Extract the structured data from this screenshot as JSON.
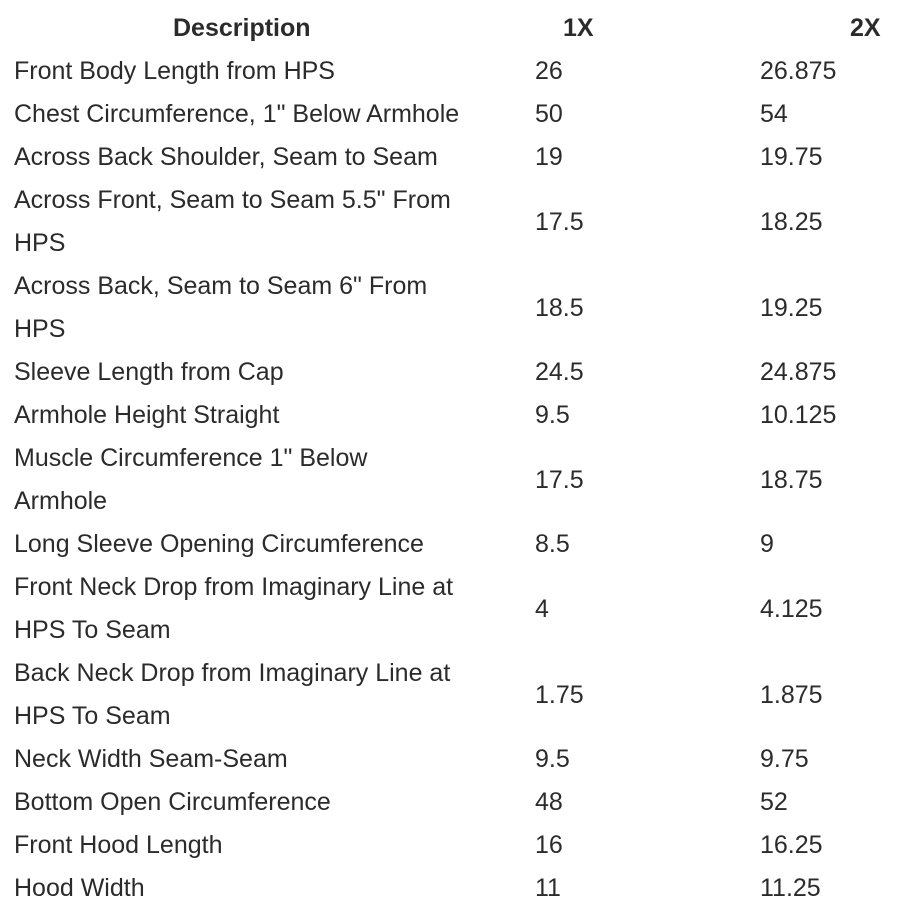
{
  "page": {
    "background_color": "#ffffff",
    "text_color": "#2b2b2b"
  },
  "chart_data": {
    "type": "table",
    "columns": [
      "Description",
      "1X",
      "2X"
    ],
    "rows": [
      {
        "description": "Front Body Length from HPS",
        "values": [
          "26",
          "26.875"
        ]
      },
      {
        "description": "Chest Circumference, 1\" Below Armhole",
        "values": [
          "50",
          "54"
        ]
      },
      {
        "description": "Across Back Shoulder, Seam to Seam",
        "values": [
          "19",
          "19.75"
        ]
      },
      {
        "description": "Across Front, Seam to Seam 5.5\" From\nHPS",
        "values": [
          "17.5",
          "18.25"
        ]
      },
      {
        "description": "Across Back, Seam to Seam 6\" From\nHPS",
        "values": [
          "18.5",
          "19.25"
        ]
      },
      {
        "description": "Sleeve Length from Cap",
        "values": [
          "24.5",
          "24.875"
        ]
      },
      {
        "description": "Armhole Height Straight",
        "values": [
          "9.5",
          "10.125"
        ]
      },
      {
        "description": "Muscle Circumference 1\" Below\nArmhole",
        "values": [
          "17.5",
          "18.75"
        ]
      },
      {
        "description": "Long Sleeve Opening Circumference",
        "values": [
          "8.5",
          "9"
        ]
      },
      {
        "description": "Front Neck Drop from Imaginary Line at\nHPS To Seam",
        "values": [
          "4",
          "4.125"
        ]
      },
      {
        "description": "Back Neck Drop from Imaginary Line at\nHPS To Seam",
        "values": [
          "1.75",
          "1.875"
        ]
      },
      {
        "description": "Neck Width Seam-Seam",
        "values": [
          "9.5",
          "9.75"
        ]
      },
      {
        "description": "Bottom Open Circumference",
        "values": [
          "48",
          "52"
        ]
      },
      {
        "description": "Front Hood Length",
        "values": [
          "16",
          "16.25"
        ]
      },
      {
        "description": "Hood Width",
        "values": [
          "11",
          "11.25"
        ]
      }
    ]
  }
}
